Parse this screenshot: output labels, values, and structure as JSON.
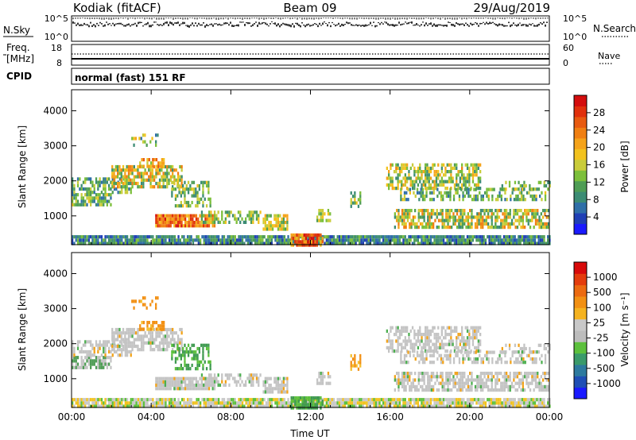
{
  "header": {
    "title": "Kodiak (fitACF)",
    "beam": "Beam 09",
    "date": "29/Aug/2019"
  },
  "top_panels": {
    "nsky_label": "N.Sky",
    "nsearch_label": "N.Search",
    "nsky_ticks": [
      "10^5",
      "10^0"
    ],
    "nsearch_ticks": [
      "10^5",
      "10^0"
    ],
    "freq_label_1": "Freq.",
    "freq_label_2": "[MHz]",
    "freq_ticks": [
      "18",
      "8"
    ],
    "nave_label": "Nave",
    "nave_ticks": [
      "60",
      "0"
    ],
    "cpid_label": "CPID",
    "cpid_text": "normal (fast) 151 RF"
  },
  "colorbars": {
    "power": {
      "label": "Power [dB]",
      "ticks": [
        "28",
        "24",
        "20",
        "16",
        "12",
        "8",
        "4"
      ],
      "colors": [
        "#1a1aff",
        "#1f3fb5",
        "#2f6fa8",
        "#3c8c74",
        "#4f9d55",
        "#7cbf3a",
        "#c9cc3a",
        "#f2c21e",
        "#f5a31a",
        "#f07f12",
        "#e85a10",
        "#e1300c",
        "#d40d0d"
      ]
    },
    "velocity": {
      "label": "Velocity [m s⁻¹]",
      "ticks": [
        "1000",
        "500",
        "100",
        "25",
        "-25",
        "-100",
        "-500",
        "-1000"
      ],
      "colors": [
        "#1a1aff",
        "#1f4fb5",
        "#2d7a9e",
        "#3a9a6a",
        "#5cc03c",
        "#bcbcbc",
        "#c8c8c8",
        "#f5b320",
        "#f29013",
        "#ec6a10",
        "#e43c0c",
        "#d80a0a"
      ]
    }
  },
  "chart_data": [
    {
      "type": "heatmap",
      "title": "",
      "xlabel": "",
      "ylabel": "Slant Range [km]",
      "x_ticks": [
        "00:00",
        "04:00",
        "08:00",
        "12:00",
        "16:00",
        "20:00",
        "00:00"
      ],
      "y_ticks": [
        "1000",
        "2000",
        "3000",
        "4000"
      ],
      "xlim": [
        0,
        24
      ],
      "ylim": [
        180,
        4600
      ],
      "colorbar": "power",
      "grid": false
    },
    {
      "type": "heatmap",
      "title": "",
      "xlabel": "Time UT",
      "ylabel": "Slant Range [km]",
      "x_ticks": [
        "00:00",
        "04:00",
        "08:00",
        "12:00",
        "16:00",
        "20:00",
        "00:00"
      ],
      "y_ticks": [
        "1000",
        "2000",
        "3000",
        "4000"
      ],
      "xlim": [
        0,
        24
      ],
      "ylim": [
        180,
        4600
      ],
      "colorbar": "velocity",
      "grid": false
    }
  ]
}
